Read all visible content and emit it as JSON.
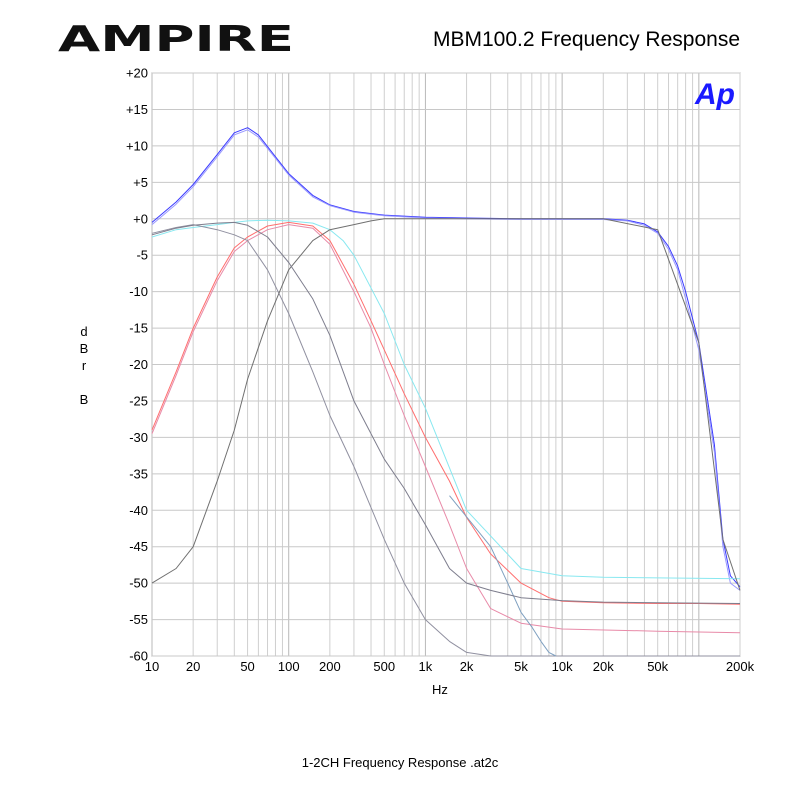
{
  "header": {
    "brand": "AMPIRE",
    "title": "MBM100.2  Frequency Response",
    "badge": "Ap"
  },
  "footer": {
    "text": "1-2CH Frequency Response .at2c"
  },
  "chart_data": {
    "type": "line",
    "title": "MBM100.2  Frequency Response",
    "xlabel": "Hz",
    "ylabel": "dBr B",
    "xscale": "log",
    "xlim": [
      10,
      200000
    ],
    "ylim": [
      -60,
      20
    ],
    "grid": true,
    "legend": "none",
    "x_ticks": [
      {
        "v": 10,
        "label": "10"
      },
      {
        "v": 20,
        "label": "20"
      },
      {
        "v": 50,
        "label": "50"
      },
      {
        "v": 100,
        "label": "100"
      },
      {
        "v": 200,
        "label": "200"
      },
      {
        "v": 500,
        "label": "500"
      },
      {
        "v": 1000,
        "label": "1k"
      },
      {
        "v": 2000,
        "label": "2k"
      },
      {
        "v": 5000,
        "label": "5k"
      },
      {
        "v": 10000,
        "label": "10k"
      },
      {
        "v": 20000,
        "label": "20k"
      },
      {
        "v": 50000,
        "label": "50k"
      },
      {
        "v": 200000,
        "label": "200k"
      }
    ],
    "y_ticks": [
      "+20",
      "+15",
      "+10",
      "+5",
      "+0",
      "-5",
      "-10",
      "-15",
      "-20",
      "-25",
      "-30",
      "-35",
      "-40",
      "-45",
      "-50",
      "-55",
      "-60"
    ],
    "series": [
      {
        "color": "#3a3aff",
        "x": [
          10,
          15,
          20,
          30,
          40,
          50,
          60,
          80,
          100,
          150,
          200,
          300,
          500,
          1000,
          2000,
          5000,
          10000,
          20000,
          30000,
          40000,
          50000,
          60000,
          70000,
          80000,
          100000,
          130000,
          150000,
          170000,
          200000
        ],
        "y": [
          -0.5,
          2.3,
          4.7,
          8.8,
          11.8,
          12.5,
          11.5,
          8.5,
          6.2,
          3.2,
          1.9,
          1.0,
          0.5,
          0.2,
          0.1,
          0.0,
          0.0,
          0.0,
          -0.2,
          -0.7,
          -1.8,
          -3.8,
          -6.5,
          -10,
          -17,
          -31,
          -44,
          -49,
          -50.5
        ]
      },
      {
        "color": "#9a9aff",
        "x": [
          10,
          15,
          20,
          30,
          40,
          50,
          60,
          80,
          100,
          150,
          200,
          300,
          500,
          1000,
          2000,
          5000,
          10000,
          20000,
          30000,
          40000,
          50000,
          60000,
          70000,
          80000,
          100000,
          130000,
          150000,
          170000,
          200000
        ],
        "y": [
          -0.8,
          2.0,
          4.4,
          8.5,
          11.5,
          12.2,
          11.2,
          8.3,
          6.0,
          3.0,
          1.8,
          0.9,
          0.4,
          0.1,
          0.0,
          -0.1,
          -0.1,
          -0.1,
          -0.3,
          -0.9,
          -2.0,
          -4.2,
          -7,
          -11,
          -18,
          -32,
          -45,
          -50,
          -51
        ]
      },
      {
        "color": "#ff6e6e",
        "x": [
          10,
          15,
          20,
          30,
          40,
          50,
          70,
          100,
          150,
          200,
          300,
          400,
          500,
          700,
          1000,
          1500,
          2000,
          3000,
          5000,
          8000,
          10000,
          20000,
          50000,
          100000,
          200000
        ],
        "y": [
          -29,
          -21,
          -15,
          -8,
          -4,
          -2.5,
          -1,
          -0.5,
          -1,
          -3,
          -9,
          -14,
          -18,
          -24,
          -30,
          -36,
          -41,
          -46,
          -50,
          -52,
          -52.5,
          -52.7,
          -52.8,
          -52.8,
          -52.9
        ]
      },
      {
        "color": "#e88aa8",
        "x": [
          10,
          15,
          20,
          30,
          40,
          50,
          70,
          100,
          150,
          200,
          300,
          400,
          500,
          700,
          1000,
          1500,
          2000,
          3000,
          5000,
          10000,
          50000,
          200000
        ],
        "y": [
          -29.5,
          -21.5,
          -15.5,
          -8.5,
          -4.5,
          -3,
          -1.5,
          -0.8,
          -1.3,
          -3.5,
          -10,
          -15,
          -20,
          -27,
          -34,
          -42,
          -48,
          -53.5,
          -55.5,
          -56.3,
          -56.6,
          -56.8
        ]
      },
      {
        "color": "#88e8f0",
        "x": [
          10,
          15,
          20,
          30,
          40,
          50,
          70,
          100,
          150,
          200,
          250,
          300,
          500,
          700,
          1000,
          2000,
          5000,
          10000,
          20000,
          200000
        ],
        "y": [
          -2.5,
          -1.5,
          -1.2,
          -0.8,
          -0.5,
          -0.3,
          -0.2,
          -0.3,
          -0.6,
          -1.5,
          -3,
          -5,
          -13,
          -20,
          -26,
          -40,
          -48,
          -49,
          -49.2,
          -49.4
        ]
      },
      {
        "color": "#9090a0",
        "x": [
          10,
          15,
          20,
          30,
          40,
          50,
          70,
          100,
          150,
          200,
          300,
          500,
          700,
          1000,
          1500,
          2000,
          3000,
          5000,
          7000,
          10000,
          15000,
          20000,
          50000,
          200000
        ],
        "y": [
          -2,
          -1.2,
          -0.8,
          -1.5,
          -2.2,
          -3,
          -7,
          -13,
          -21,
          -27,
          -34,
          -44,
          -50,
          -55,
          -58,
          -59.5,
          -60,
          -60,
          -60,
          -60,
          -60,
          -60,
          -60,
          -60
        ]
      },
      {
        "color": "#7fa0c0",
        "x": [
          1500,
          3000,
          4000,
          5000,
          6000,
          7000,
          8000,
          9000
        ],
        "y": [
          -38,
          -45,
          -50,
          -54,
          -56,
          -58,
          -59.5,
          -60
        ]
      },
      {
        "color": "#707070",
        "x": [
          10,
          15,
          20,
          30,
          40,
          50,
          70,
          100,
          150,
          200,
          300,
          400,
          500,
          700,
          1000,
          2000,
          5000,
          10000,
          20000,
          50000,
          100000,
          150000,
          200000
        ],
        "y": [
          -50,
          -48,
          -45,
          -36,
          -29,
          -22,
          -14,
          -7,
          -3,
          -1.5,
          -0.8,
          -0.3,
          0,
          0,
          0,
          0,
          0,
          0,
          0,
          -1.5,
          -17,
          -44,
          -51
        ]
      },
      {
        "color": "#7d7d8d",
        "x": [
          10,
          15,
          20,
          30,
          40,
          50,
          70,
          100,
          150,
          200,
          300,
          500,
          700,
          1000,
          1500,
          2000,
          3000,
          5000,
          10000,
          20000,
          50000,
          200000
        ],
        "y": [
          -2.2,
          -1.3,
          -0.9,
          -0.6,
          -0.5,
          -0.9,
          -2.5,
          -6,
          -11,
          -16,
          -25,
          -33,
          -37,
          -42,
          -48,
          -50,
          -51,
          -52,
          -52.4,
          -52.6,
          -52.7,
          -52.8
        ]
      }
    ]
  }
}
